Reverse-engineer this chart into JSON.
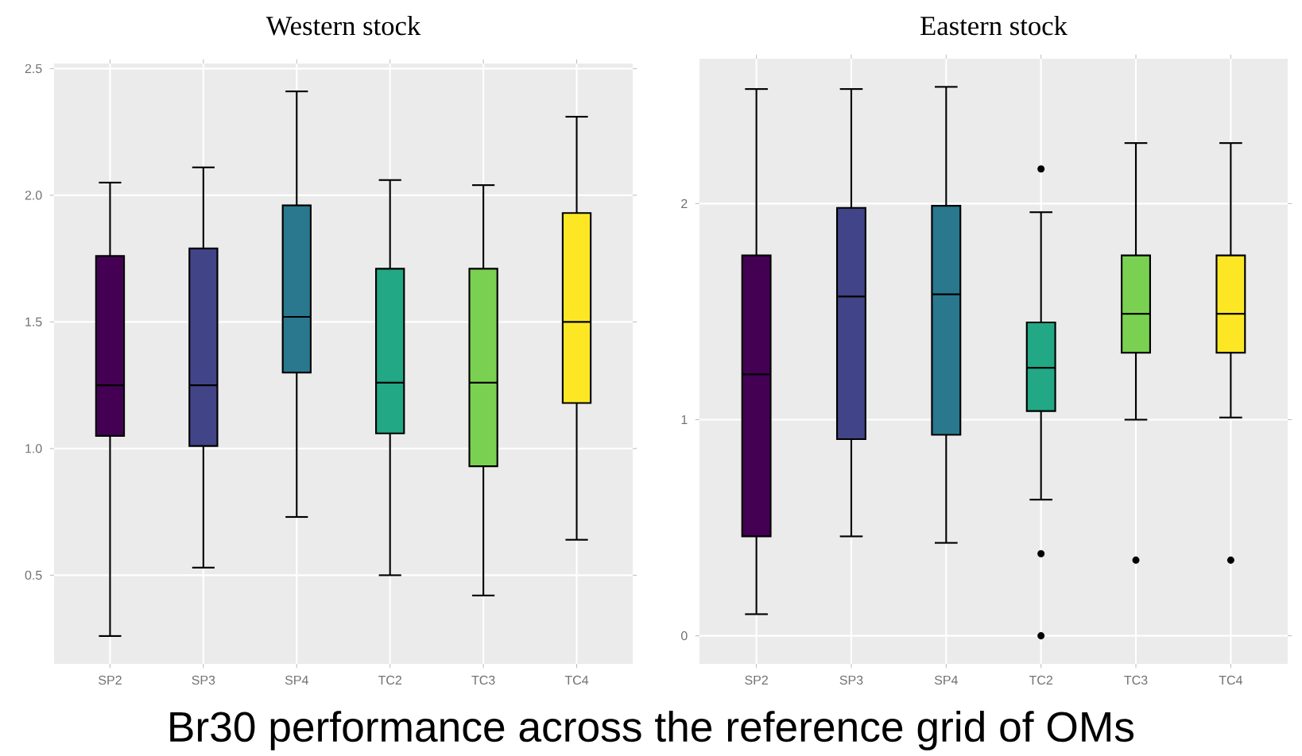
{
  "chart_data": [
    {
      "type": "box",
      "title": "Western stock",
      "categories": [
        "SP2",
        "SP3",
        "SP4",
        "TC2",
        "TC3",
        "TC4"
      ],
      "boxes": [
        {
          "low": 0.26,
          "q1": 1.05,
          "median": 1.25,
          "q3": 1.76,
          "high": 2.05
        },
        {
          "low": 0.53,
          "q1": 1.01,
          "median": 1.25,
          "q3": 1.79,
          "high": 2.11
        },
        {
          "low": 0.73,
          "q1": 1.3,
          "median": 1.52,
          "q3": 1.96,
          "high": 2.41
        },
        {
          "low": 0.5,
          "q1": 1.06,
          "median": 1.26,
          "q3": 1.71,
          "high": 2.06
        },
        {
          "low": 0.42,
          "q1": 0.93,
          "median": 1.26,
          "q3": 1.71,
          "high": 2.04
        },
        {
          "low": 0.64,
          "q1": 1.18,
          "median": 1.5,
          "q3": 1.93,
          "high": 2.31
        }
      ],
      "colors": [
        "#440154",
        "#414487",
        "#2a788e",
        "#22a884",
        "#7ad151",
        "#fde725"
      ],
      "ylim": [
        0.15,
        2.52
      ],
      "yticks": [
        0.5,
        {
          "value": 1,
          "label": "1.0"
        },
        1.5,
        {
          "value": 2,
          "label": "2.0"
        },
        2.5
      ],
      "grid": true,
      "annotations": [
        "Br30 performance across the reference grid of OMs"
      ]
    },
    {
      "type": "box",
      "title": "Eastern stock",
      "categories": [
        "SP2",
        "SP3",
        "SP4",
        "TC2",
        "TC3",
        "TC4"
      ],
      "boxes": [
        {
          "low": 0.1,
          "q1": 0.46,
          "median": 1.21,
          "q3": 1.76,
          "high": 2.53
        },
        {
          "low": 0.46,
          "q1": 0.91,
          "median": 1.57,
          "q3": 1.98,
          "high": 2.53
        },
        {
          "low": 0.43,
          "q1": 0.93,
          "median": 1.58,
          "q3": 1.99,
          "high": 2.54
        },
        {
          "low": 0.63,
          "q1": 1.04,
          "median": 1.24,
          "q3": 1.45,
          "high": 1.96,
          "outliers": [
            0.0,
            0.38,
            2.16
          ]
        },
        {
          "low": 1.0,
          "q1": 1.31,
          "median": 1.49,
          "q3": 1.76,
          "high": 2.28,
          "outliers": [
            0.35
          ]
        },
        {
          "low": 1.01,
          "q1": 1.31,
          "median": 1.49,
          "q3": 1.76,
          "high": 2.28,
          "outliers": [
            0.35
          ]
        }
      ],
      "colors": [
        "#440154",
        "#414487",
        "#2a788e",
        "#22a884",
        "#7ad151",
        "#fde725"
      ],
      "ylim": [
        -0.13,
        2.67
      ],
      "yticks": [
        0,
        1,
        2
      ],
      "grid": true
    }
  ]
}
